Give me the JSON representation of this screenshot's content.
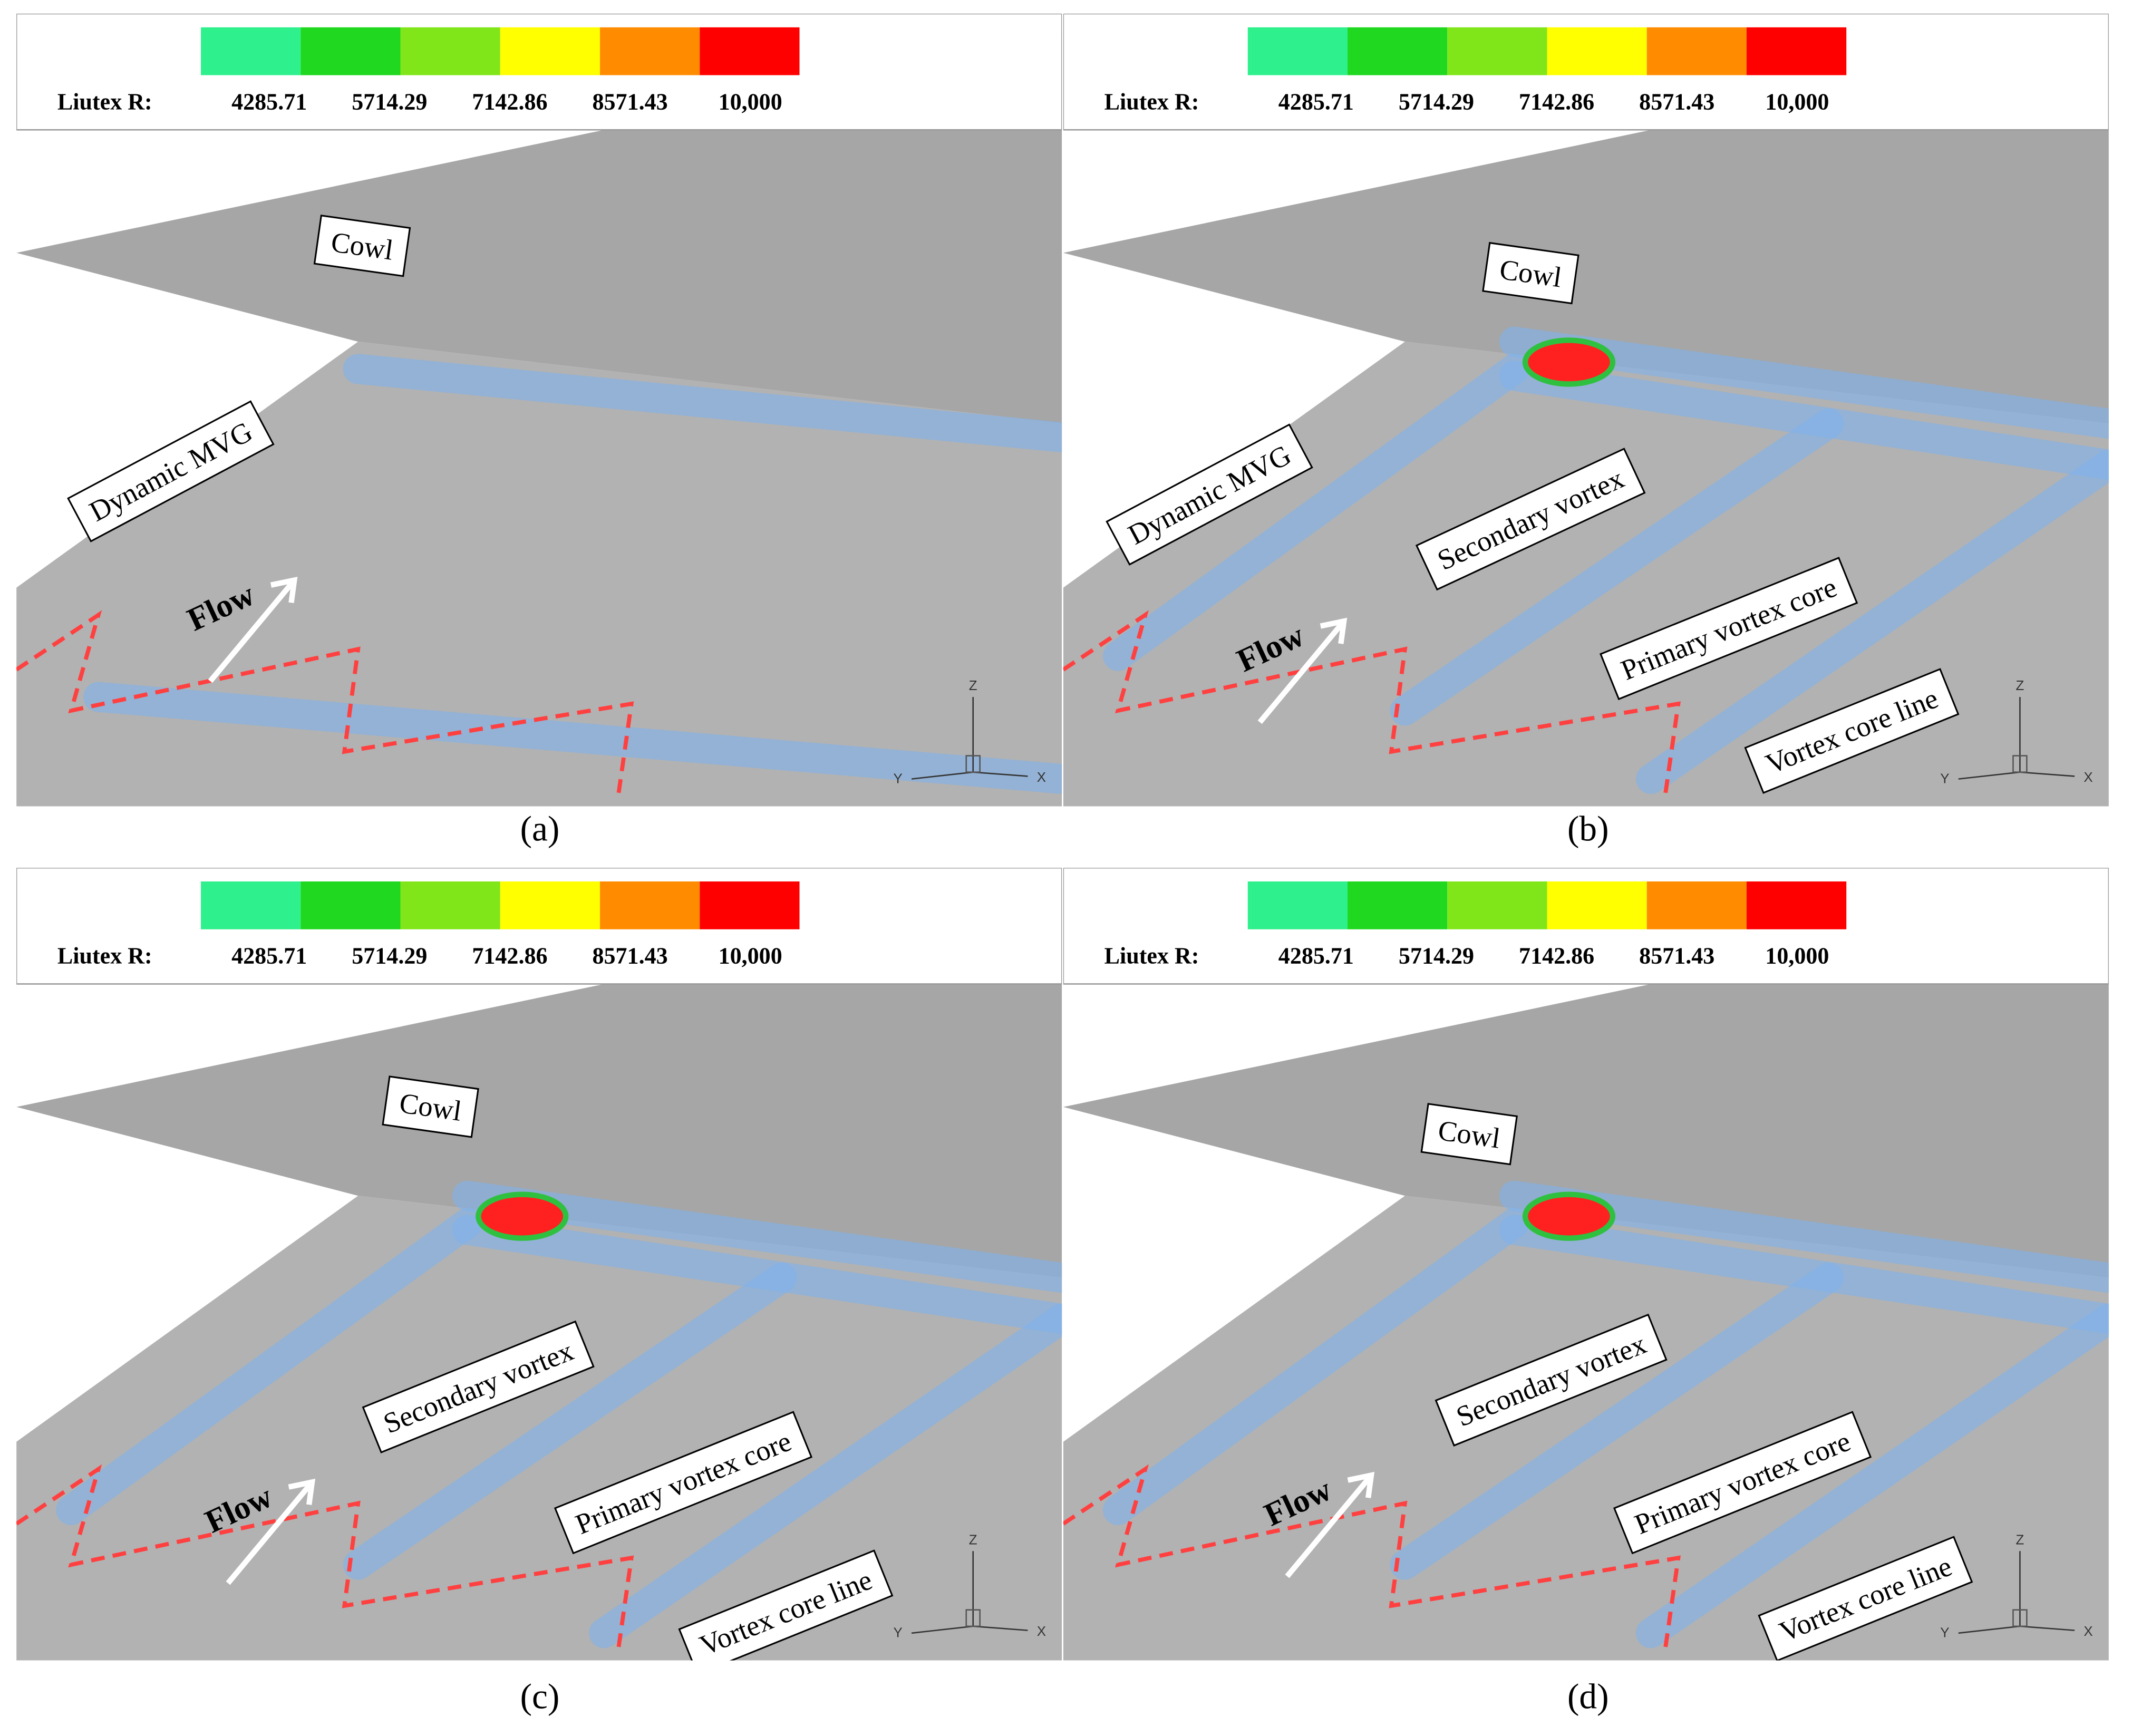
{
  "panels": [
    {
      "label": "(a)",
      "legend": {
        "title": "Liutex R:",
        "ticks": [
          "4285.71",
          "5714.29",
          "7142.86",
          "8571.43",
          "10,000"
        ]
      },
      "annotations": [
        "Cowl",
        "Dynamic MVG",
        "Flow"
      ],
      "triad": [
        "Z",
        "Y",
        "X"
      ]
    },
    {
      "label": "(b)",
      "legend": {
        "title": "Liutex R:",
        "ticks": [
          "4285.71",
          "5714.29",
          "7142.86",
          "8571.43",
          "10,000"
        ]
      },
      "annotations": [
        "Cowl",
        "Dynamic MVG",
        "Secondary vortex",
        "Primary vortex core",
        "Vortex core line",
        "Flow"
      ],
      "triad": [
        "Z",
        "Y",
        "X"
      ]
    },
    {
      "label": "(c)",
      "legend": {
        "title": "Liutex R:",
        "ticks": [
          "4285.71",
          "5714.29",
          "7142.86",
          "8571.43",
          "10,000"
        ]
      },
      "annotations": [
        "Cowl",
        "Secondary vortex",
        "Primary vortex core",
        "Vortex core line",
        "Flow"
      ],
      "triad": [
        "Z",
        "Y",
        "X"
      ]
    },
    {
      "label": "(d)",
      "legend": {
        "title": "Liutex R:",
        "ticks": [
          "4285.71",
          "5714.29",
          "7142.86",
          "8571.43",
          "10,000"
        ]
      },
      "annotations": [
        "Cowl",
        "Secondary vortex",
        "Primary vortex core",
        "Vortex core line",
        "Flow"
      ],
      "triad": [
        "Z",
        "Y",
        "X"
      ]
    }
  ]
}
